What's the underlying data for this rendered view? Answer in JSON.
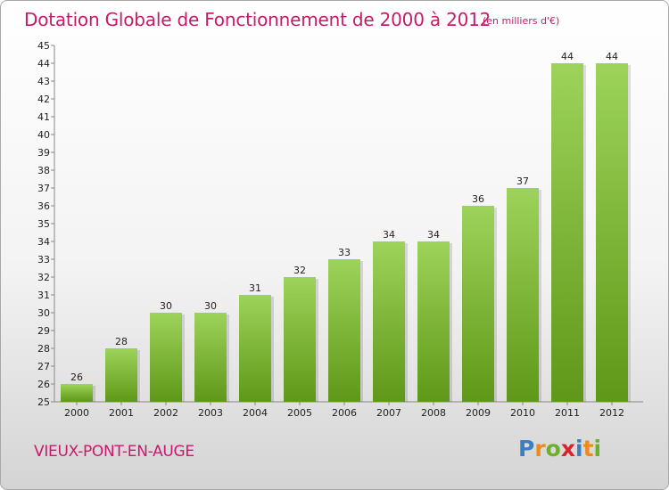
{
  "title": "Dotation Globale de Fonctionnement de 2000 à 2012",
  "subtitle": "(en milliers d'€)",
  "commune": "VIEUX-PONT-EN-AUGE",
  "logo": {
    "letters": [
      "P",
      "r",
      "o",
      "x",
      "i",
      "t",
      "i"
    ],
    "colors": [
      "#3a7fc4",
      "#ec8a1a",
      "#6bb02b",
      "#d8232a",
      "#3a7fc4",
      "#ec8a1a",
      "#6bb02b"
    ]
  },
  "colors": {
    "bar_top": "#9dd35a",
    "bar_bottom": "#5f9818",
    "title": "#c81a6c"
  },
  "chart_data": {
    "type": "bar",
    "categories": [
      "2000",
      "2001",
      "2002",
      "2003",
      "2004",
      "2005",
      "2006",
      "2007",
      "2008",
      "2009",
      "2010",
      "2011",
      "2012"
    ],
    "values": [
      26,
      28,
      30,
      30,
      31,
      32,
      33,
      34,
      34,
      36,
      37,
      44,
      44
    ],
    "ylim": [
      25,
      45
    ],
    "yticks": [
      25,
      26,
      27,
      28,
      29,
      30,
      31,
      32,
      33,
      34,
      35,
      36,
      37,
      38,
      39,
      40,
      41,
      42,
      43,
      44,
      45
    ],
    "grid": false,
    "data_labels": true
  }
}
